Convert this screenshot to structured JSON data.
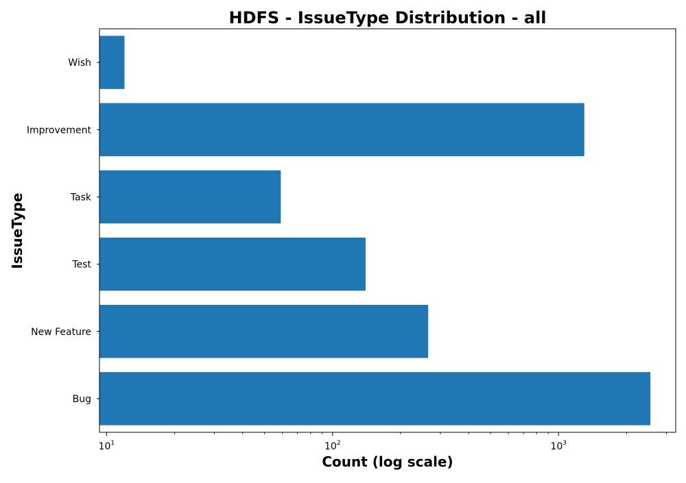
{
  "chart_data": {
    "type": "bar",
    "orientation": "horizontal",
    "title": "HDFS - IssueType Distribution - all",
    "xlabel": "Count (log scale)",
    "ylabel": "IssueType",
    "x_scale": "log",
    "xlim": [
      9.3,
      3300
    ],
    "x_ticks": [
      {
        "base": "10",
        "exp": "1",
        "value": 10
      },
      {
        "base": "10",
        "exp": "2",
        "value": 100
      },
      {
        "base": "10",
        "exp": "3",
        "value": 1000
      }
    ],
    "categories": [
      "Bug",
      "New Feature",
      "Test",
      "Task",
      "Improvement",
      "Wish"
    ],
    "values": [
      2550,
      265,
      140,
      59,
      1300,
      12
    ],
    "bar_color": "#1f77b4",
    "grid": false,
    "legend": "none"
  }
}
